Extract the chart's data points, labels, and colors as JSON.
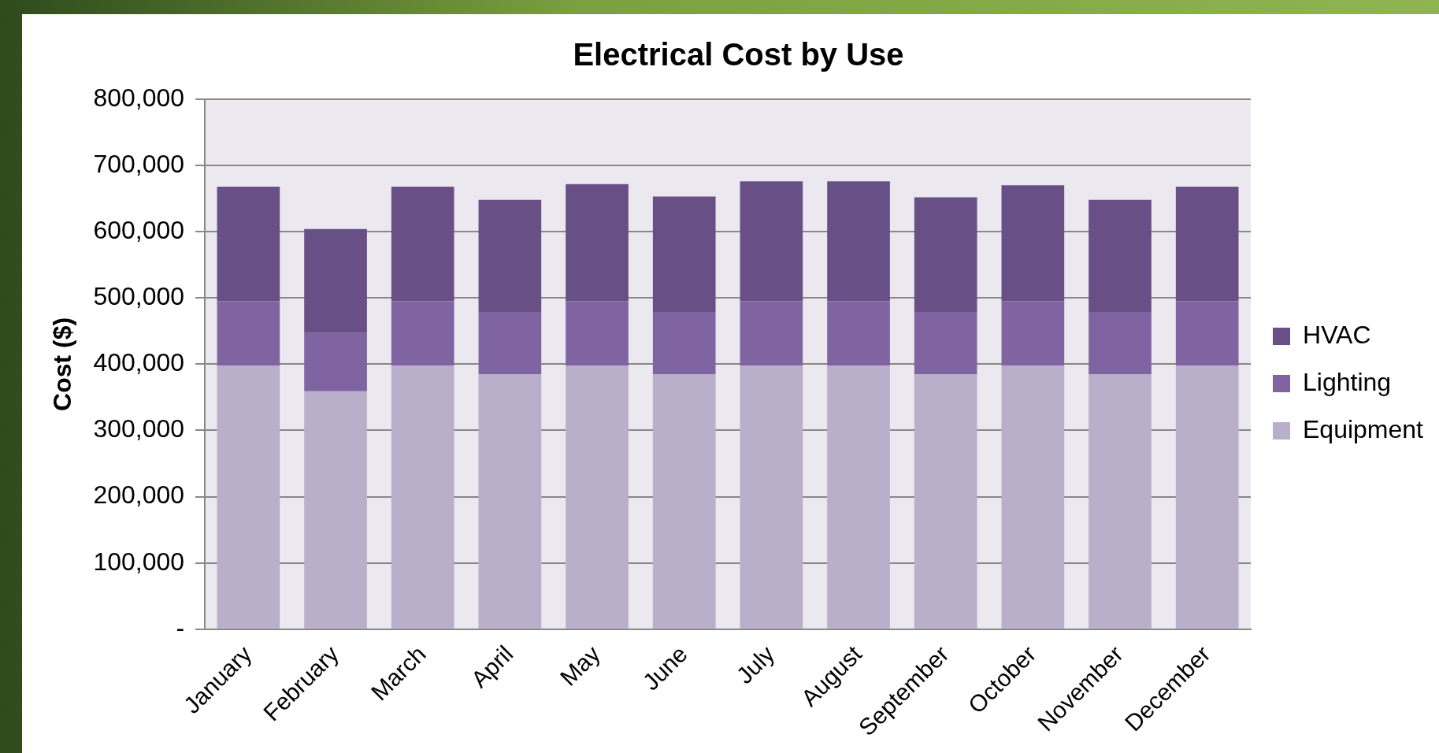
{
  "chart_data": {
    "type": "bar",
    "title": "Electrical Cost by Use",
    "ylabel": "Cost ($)",
    "stacked": true,
    "legend": "right",
    "grid": "y",
    "categories": [
      "January",
      "February",
      "March",
      "April",
      "May",
      "June",
      "July",
      "August",
      "September",
      "October",
      "November",
      "December"
    ],
    "ylim": [
      0,
      800000
    ],
    "yticks": [
      {
        "value": 0,
        "label": "-"
      },
      {
        "value": 100000,
        "label": "100,000"
      },
      {
        "value": 200000,
        "label": "200,000"
      },
      {
        "value": 300000,
        "label": "300,000"
      },
      {
        "value": 400000,
        "label": "400,000"
      },
      {
        "value": 500000,
        "label": "500,000"
      },
      {
        "value": 600000,
        "label": "600,000"
      },
      {
        "value": 700000,
        "label": "700,000"
      },
      {
        "value": 800000,
        "label": "800,000"
      }
    ],
    "series": [
      {
        "name": "Equipment",
        "color": "#b9afca",
        "values": [
          398000,
          359000,
          398000,
          385000,
          398000,
          385000,
          398000,
          398000,
          385000,
          398000,
          385000,
          398000
        ]
      },
      {
        "name": "Lighting",
        "color": "#8064a2",
        "values": [
          97000,
          88000,
          97000,
          94000,
          97000,
          94000,
          97000,
          97000,
          94000,
          97000,
          94000,
          97000
        ]
      },
      {
        "name": "HVAC",
        "color": "#684f86",
        "values": [
          173000,
          157000,
          173000,
          169000,
          177000,
          174000,
          181000,
          181000,
          173000,
          175000,
          169000,
          173000
        ]
      }
    ]
  }
}
